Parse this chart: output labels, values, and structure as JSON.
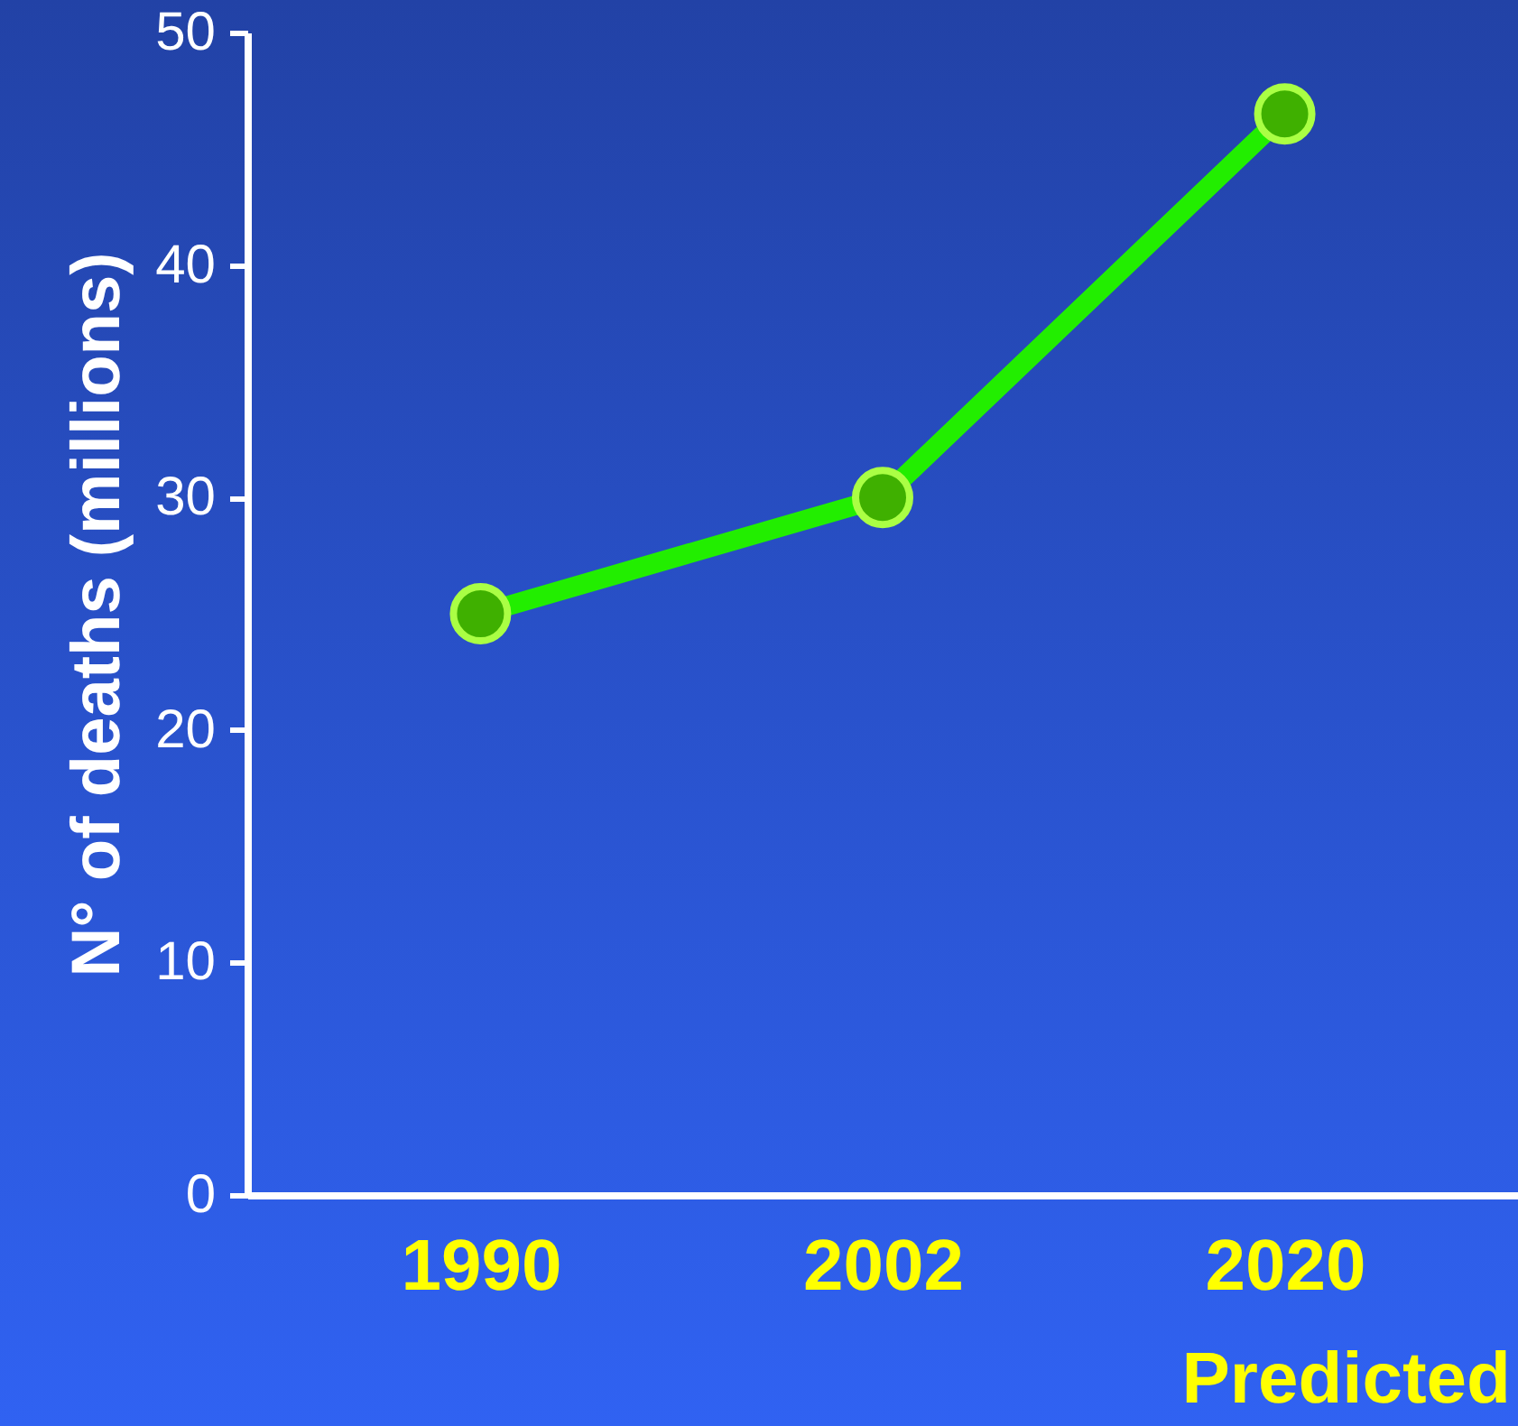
{
  "chart_data": {
    "type": "line",
    "ylabel": "N° of deaths (millions)",
    "categories": [
      "1990",
      "2002",
      "2020"
    ],
    "series": [
      {
        "color": "#22ee00",
        "values": [
          25,
          30,
          46.5
        ]
      }
    ],
    "ylim": [
      0,
      50
    ],
    "yticks": [
      0,
      10,
      20,
      30,
      40,
      50
    ],
    "grid": false,
    "marker": "circle",
    "line_style": "solid",
    "annotations": [
      "Predicted"
    ]
  }
}
